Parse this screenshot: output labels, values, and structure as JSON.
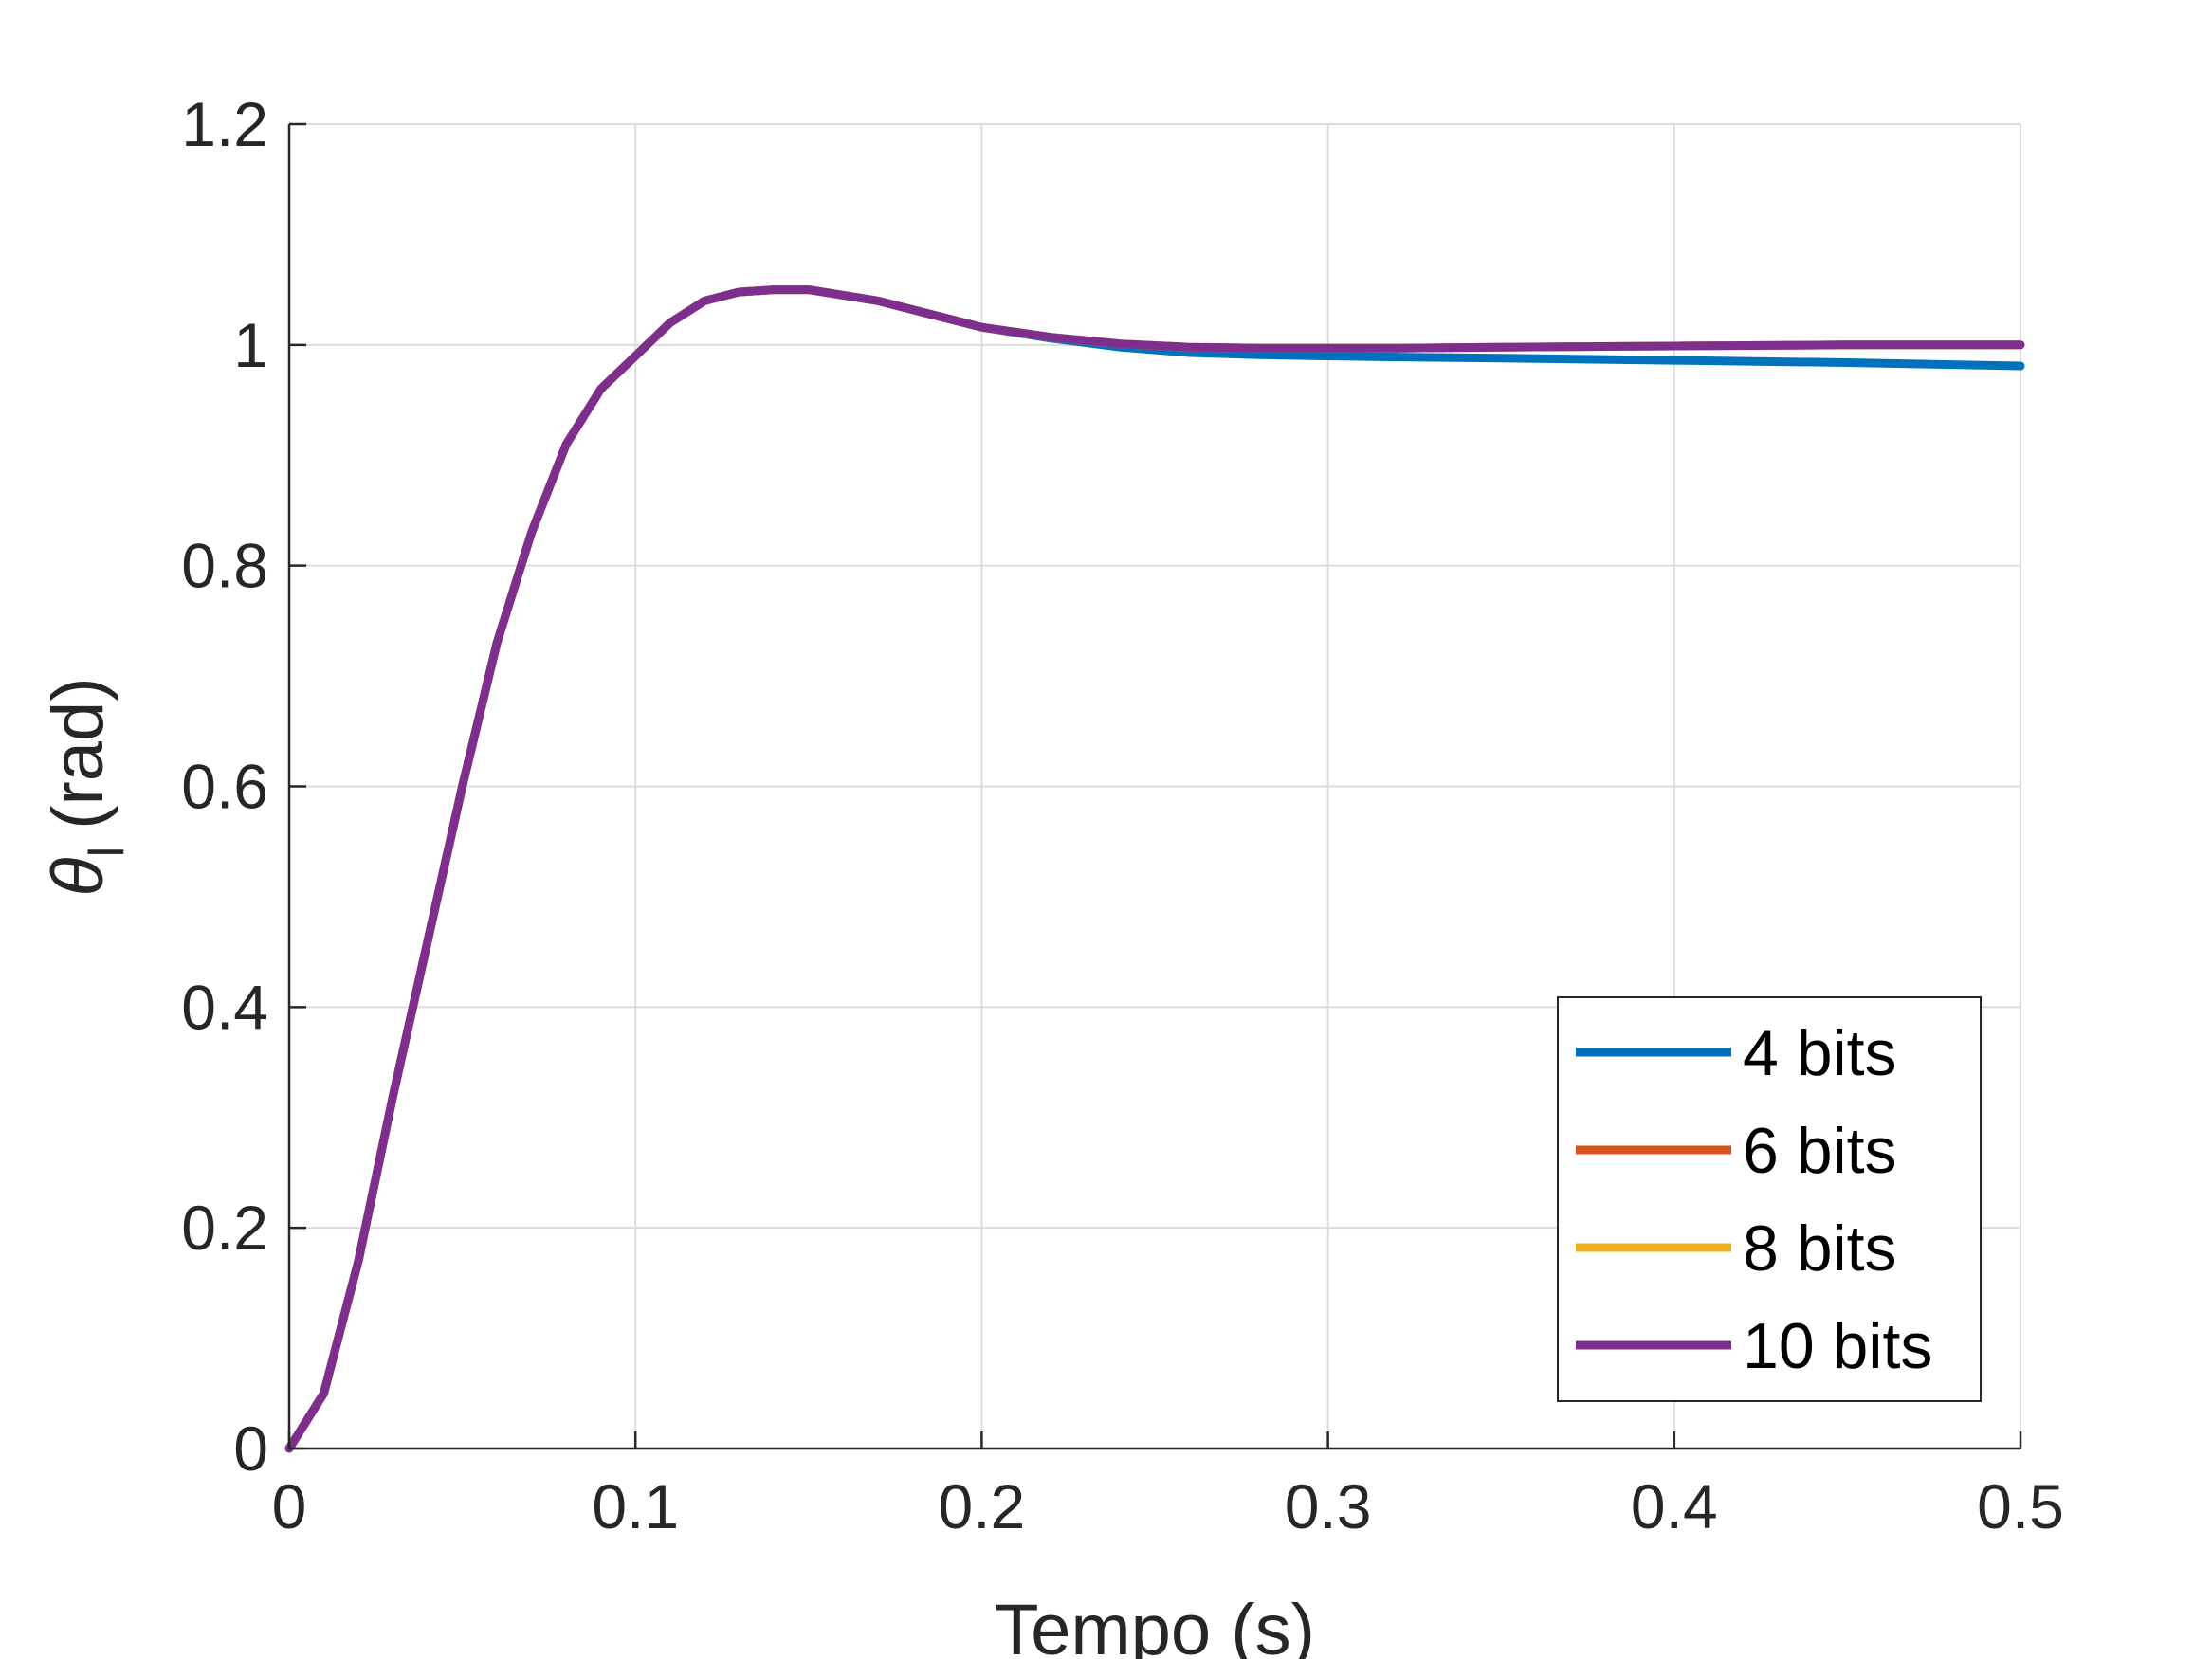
{
  "chart_data": {
    "type": "line",
    "xlabel": "Tempo (s)",
    "ylabel": {
      "symbol": "θ",
      "subscript": "l",
      "unit": "(rad)"
    },
    "xlim": [
      0,
      0.5
    ],
    "ylim": [
      0,
      1.2
    ],
    "xticks": [
      0,
      0.1,
      0.2,
      0.3,
      0.4,
      0.5
    ],
    "xtick_labels": [
      "0",
      "0.1",
      "0.2",
      "0.3",
      "0.4",
      "0.5"
    ],
    "yticks": [
      0,
      0.2,
      0.4,
      0.6,
      0.8,
      1.0,
      1.2
    ],
    "ytick_labels": [
      "0",
      "0.2",
      "0.4",
      "0.6",
      "0.8",
      "1",
      "1.2"
    ],
    "grid": true,
    "legend_position": "bottom-right",
    "x": [
      0,
      0.01,
      0.02,
      0.03,
      0.04,
      0.05,
      0.06,
      0.07,
      0.08,
      0.09,
      0.1,
      0.11,
      0.12,
      0.13,
      0.14,
      0.15,
      0.16,
      0.17,
      0.18,
      0.19,
      0.2,
      0.22,
      0.24,
      0.26,
      0.28,
      0.3,
      0.32,
      0.35,
      0.4,
      0.45,
      0.5
    ],
    "series": [
      {
        "name": "4 bits",
        "color": "#0072bd",
        "values": [
          0,
          0.05,
          0.17,
          0.32,
          0.46,
          0.6,
          0.73,
          0.83,
          0.91,
          0.96,
          0.99,
          1.02,
          1.04,
          1.048,
          1.05,
          1.05,
          1.045,
          1.04,
          1.032,
          1.024,
          1.016,
          1.006,
          0.998,
          0.993,
          0.991,
          0.99,
          0.989,
          0.988,
          0.986,
          0.984,
          0.981
        ]
      },
      {
        "name": "6 bits",
        "color": "#d95319",
        "values": [
          0,
          0.05,
          0.17,
          0.32,
          0.46,
          0.6,
          0.73,
          0.83,
          0.91,
          0.96,
          0.99,
          1.02,
          1.04,
          1.048,
          1.05,
          1.05,
          1.045,
          1.04,
          1.032,
          1.024,
          1.016,
          1.007,
          1.001,
          0.998,
          0.997,
          0.997,
          0.997,
          0.998,
          0.999,
          1.0,
          1.0
        ]
      },
      {
        "name": "8 bits",
        "color": "#edb120",
        "values": [
          0,
          0.05,
          0.17,
          0.32,
          0.46,
          0.6,
          0.73,
          0.83,
          0.91,
          0.96,
          0.99,
          1.02,
          1.04,
          1.048,
          1.05,
          1.05,
          1.045,
          1.04,
          1.032,
          1.024,
          1.016,
          1.007,
          1.001,
          0.998,
          0.997,
          0.997,
          0.997,
          0.998,
          0.999,
          1.0,
          1.0
        ]
      },
      {
        "name": "10 bits",
        "color": "#7e2f8e",
        "values": [
          0,
          0.05,
          0.17,
          0.32,
          0.46,
          0.6,
          0.73,
          0.83,
          0.91,
          0.96,
          0.99,
          1.02,
          1.04,
          1.048,
          1.05,
          1.05,
          1.045,
          1.04,
          1.032,
          1.024,
          1.016,
          1.007,
          1.001,
          0.998,
          0.997,
          0.997,
          0.997,
          0.998,
          0.999,
          1.0,
          1.0
        ]
      }
    ]
  },
  "colors": {
    "axis": "#262626",
    "grid": "#dcdcdc",
    "background": "#ffffff"
  }
}
